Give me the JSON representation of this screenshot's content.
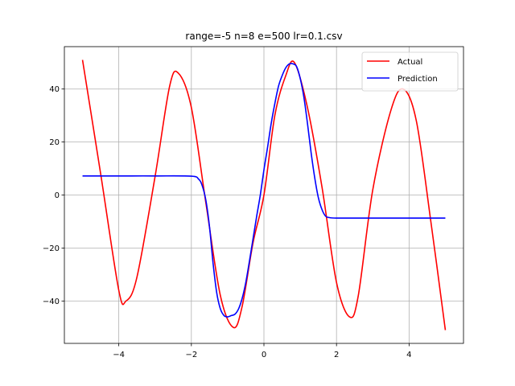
{
  "chart_data": {
    "type": "line",
    "title": "range=-5 n=8 e=500 lr=0.1.csv",
    "xlabel": "",
    "ylabel": "",
    "xlim": [
      -5.5,
      5.5
    ],
    "ylim": [
      -56,
      56
    ],
    "xticks": [
      -4,
      -2,
      0,
      2,
      4
    ],
    "yticks": [
      -40,
      -20,
      0,
      20,
      40
    ],
    "xtick_labels": [
      "−4",
      "−2",
      "0",
      "2",
      "4"
    ],
    "ytick_labels": [
      "−40",
      "−20",
      "0",
      "20",
      "40"
    ],
    "grid": true,
    "legend_position": "upper right",
    "series": [
      {
        "name": "Actual",
        "color": "#ff0000",
        "x": [
          -5.0,
          -4.5,
          -4.0,
          -3.8,
          -3.5,
          -3.0,
          -2.6,
          -2.36,
          -2.0,
          -1.6,
          -1.2,
          -0.84,
          -0.6,
          -0.3,
          0.0,
          0.3,
          0.6,
          0.84,
          1.2,
          1.6,
          2.0,
          2.36,
          2.6,
          3.0,
          3.5,
          3.84,
          4.2,
          4.6,
          5.0
        ],
        "values": [
          51.0,
          8.0,
          -36.0,
          -40.0,
          -31.0,
          7.0,
          41.0,
          46.0,
          33.0,
          -3.0,
          -38.0,
          -50.0,
          -42.0,
          -18.0,
          0.0,
          30.0,
          45.0,
          50.0,
          33.0,
          3.0,
          -33.0,
          -46.0,
          -38.0,
          2.0,
          32.0,
          40.0,
          28.0,
          -10.0,
          -51.0
        ]
      },
      {
        "name": "Prediction",
        "color": "#0000ff",
        "x": [
          -5.0,
          -4.0,
          -3.0,
          -2.0,
          -1.8,
          -1.7,
          -1.6,
          -1.5,
          -1.4,
          -1.3,
          -1.2,
          -1.1,
          -1.0,
          -0.9,
          -0.8,
          -0.7,
          -0.6,
          -0.5,
          -0.4,
          -0.3,
          -0.2,
          -0.1,
          0.0,
          0.1,
          0.2,
          0.3,
          0.4,
          0.5,
          0.6,
          0.7,
          0.8,
          0.9,
          1.0,
          1.1,
          1.2,
          1.3,
          1.4,
          1.5,
          1.6,
          1.7,
          1.8,
          2.0,
          3.0,
          4.0,
          5.0
        ],
        "values": [
          7.2,
          7.2,
          7.2,
          7.1,
          6.0,
          3.5,
          -2.0,
          -12.0,
          -26.0,
          -37.0,
          -43.0,
          -45.5,
          -46.0,
          -45.5,
          -45.0,
          -43.0,
          -39.0,
          -33.0,
          -25.0,
          -16.5,
          -8.0,
          0.0,
          9.5,
          18.0,
          27.0,
          34.5,
          41.0,
          45.0,
          48.0,
          49.5,
          49.5,
          48.5,
          44.0,
          37.0,
          27.0,
          16.0,
          6.5,
          -1.0,
          -5.5,
          -8.0,
          -8.5,
          -8.7,
          -8.7,
          -8.7,
          -8.7
        ]
      }
    ]
  }
}
